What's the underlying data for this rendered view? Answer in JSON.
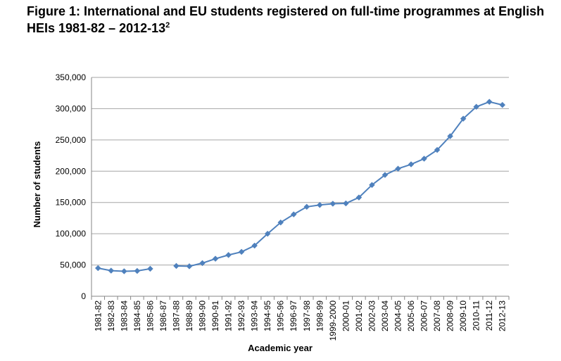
{
  "chart_data": {
    "type": "line",
    "title": "Figure 1: International and EU students registered on full-time programmes at English HEIs 1981-82 – 2012-13",
    "title_superscript": "2",
    "xlabel": "Academic year",
    "ylabel": "Number of students",
    "ylim": [
      0,
      350000
    ],
    "yticks": [
      "0",
      "50,000",
      "100,000",
      "150,000",
      "200,000",
      "250,000",
      "300,000",
      "350,000"
    ],
    "grid": "horizontal",
    "legend": "none",
    "series_color": "#4f81bd",
    "categories": [
      "1981-82",
      "1982-83",
      "1983-84",
      "1984-85",
      "1985-86",
      "1986-87",
      "1987-88",
      "1988-89",
      "1989-90",
      "1990-91",
      "1991-92",
      "1992-93",
      "1993-94",
      "1994-95",
      "1995-96",
      "1996-97",
      "1997-98",
      "1998-99",
      "1999-2000",
      "2000-01",
      "2001-02",
      "2002-03",
      "2003-04",
      "2004-05",
      "2005-06",
      "2006-07",
      "2007-08",
      "2008-09",
      "2009-10",
      "2010-11",
      "2011-12",
      "2012-13"
    ],
    "values": [
      45000,
      41000,
      40000,
      40500,
      44000,
      null,
      48500,
      48000,
      53000,
      60000,
      66000,
      71000,
      81000,
      100000,
      118000,
      131000,
      143000,
      146000,
      148000,
      148500,
      158000,
      178000,
      194000,
      204000,
      211000,
      220000,
      234000,
      256000,
      284000,
      303000,
      311000,
      306000
    ]
  }
}
